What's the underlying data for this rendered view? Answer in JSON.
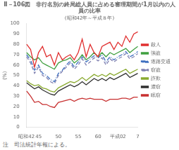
{
  "chart_data": {
    "type": "line",
    "title": "Ⅱ－106図　非行名別の終局総人員に占める審理期間が1月以内の人員の比率",
    "subtitle": "(昭和42年～平成８年)",
    "note": "注　司法統計年報による。",
    "ylabel": "(%)",
    "categories": [
      "昭和42",
      null,
      null,
      "45",
      null,
      null,
      null,
      null,
      "50",
      null,
      null,
      null,
      null,
      "55",
      null,
      null,
      null,
      null,
      "60",
      null,
      null,
      null,
      null,
      "平成02",
      null,
      null,
      null,
      null,
      "7"
    ],
    "ylim": [
      0,
      100
    ],
    "yticks": [
      0,
      10,
      20,
      30,
      40,
      50,
      60,
      70,
      80,
      90,
      100
    ],
    "grid": false,
    "legend": "right",
    "series": [
      {
        "name": "殺人",
        "color": "#e03030",
        "line_style": "solid",
        "values": [
          80,
          75,
          58,
          72,
          78,
          68,
          70,
          60,
          72,
          65,
          68,
          70,
          65,
          72,
          85,
          68,
          80,
          72,
          68,
          78,
          80,
          82,
          75,
          82,
          78,
          88,
          82,
          90,
          92
        ]
      },
      {
        "name": "強盗",
        "color": "#40a040",
        "line_style": "solid",
        "values": [
          72,
          68,
          65,
          67,
          62,
          60,
          58,
          56,
          62,
          64,
          65,
          67,
          62,
          65,
          70,
          65,
          68,
          72,
          68,
          72,
          68,
          72,
          70,
          72,
          74,
          76,
          72,
          75,
          78
        ]
      },
      {
        "name": "道路交通",
        "color": "#4070c0",
        "line_style": "dashdot",
        "values": [
          70,
          65,
          55,
          60,
          52,
          50,
          46,
          44,
          52,
          55,
          60,
          64,
          58,
          63,
          68,
          63,
          66,
          69,
          67,
          70,
          63,
          68,
          65,
          68,
          70,
          73,
          68,
          70,
          73
        ]
      },
      {
        "name": "窃盗",
        "color": "#8080b0",
        "line_style": "dashed",
        "values": [
          68,
          62,
          52,
          58,
          50,
          48,
          44,
          42,
          50,
          54,
          58,
          62,
          56,
          60,
          66,
          60,
          63,
          67,
          64,
          67,
          60,
          66,
          63,
          66,
          68,
          71,
          66,
          68,
          71
        ]
      },
      {
        "name": "詐欺",
        "color": "#8aaa30",
        "line_style": "solid",
        "values": [
          45,
          42,
          40,
          41,
          38,
          37,
          35,
          34,
          38,
          40,
          42,
          44,
          43,
          45,
          48,
          45,
          48,
          51,
          49,
          51,
          49,
          52,
          50,
          52,
          54,
          56,
          52,
          54,
          56
        ]
      },
      {
        "name": "濃窃",
        "color": "#303030",
        "line_style": "solid",
        "values": [
          43,
          40,
          37,
          39,
          36,
          34,
          32,
          31,
          35,
          37,
          39,
          41,
          39,
          41,
          44,
          41,
          44,
          47,
          45,
          47,
          45,
          48,
          46,
          48,
          50,
          52,
          48,
          50,
          52
        ]
      },
      {
        "name": "眠窃",
        "color": "#c83030",
        "line_style": "solid",
        "values": [
          35,
          30,
          24,
          25,
          22,
          22,
          20,
          19,
          24,
          25,
          26,
          27,
          25,
          27,
          28,
          27,
          28,
          27,
          27,
          27,
          25,
          27,
          27,
          27,
          28,
          28,
          27,
          29,
          29
        ]
      }
    ]
  }
}
